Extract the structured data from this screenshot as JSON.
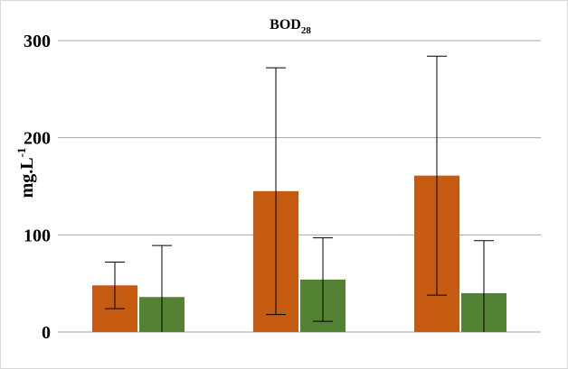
{
  "chart_data": {
    "type": "bar",
    "title": "BOD",
    "title_subscript": "28",
    "ylabel": "mg.L",
    "ylabel_superscript": "-1",
    "xlabel": "",
    "categories": [
      "",
      "",
      ""
    ],
    "ylim": [
      0,
      300
    ],
    "yticks": [
      0,
      100,
      200,
      300
    ],
    "grid": true,
    "legend": "none",
    "series": [
      {
        "color": "#c55a11",
        "values": [
          48,
          145,
          161
        ],
        "error": [
          24,
          127,
          123
        ]
      },
      {
        "color": "#548235",
        "values": [
          36,
          54,
          40
        ],
        "error": [
          53,
          43,
          54
        ]
      }
    ]
  }
}
